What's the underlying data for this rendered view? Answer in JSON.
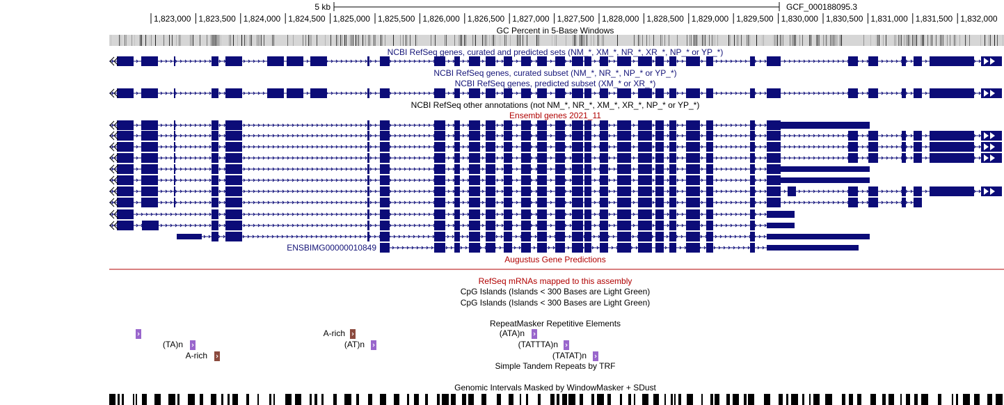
{
  "ruler": {
    "scale_label": "5 kb",
    "assembly_label": "GCF_000188095.3",
    "ticks": [
      "1,823,000",
      "1,823,500",
      "1,824,000",
      "1,824,500",
      "1,825,000",
      "1,825,500",
      "1,826,000",
      "1,826,500",
      "1,827,000",
      "1,827,500",
      "1,828,000",
      "1,828,500",
      "1,829,000",
      "1,829,500",
      "1,830,000",
      "1,830,500",
      "1,831,000",
      "1,831,500",
      "1,832,000"
    ]
  },
  "tracks": {
    "gc_percent": "GC Percent in 5-Base Windows",
    "refseq_all": "NCBI RefSeq genes, curated and predicted sets (NM_*, XM_*, NR_*, XR_*, NP_* or YP_*)",
    "refseq_curated": "NCBI RefSeq genes, curated subset (NM_*, NR_*, NP_* or YP_*)",
    "refseq_predicted": "NCBI RefSeq genes, predicted subset (XM_* or XR_*)",
    "refseq_other": "NCBI RefSeq other annotations (not NM_*, NR_*, XM_*, XR_*, NP_* or YP_*)",
    "ensembl": "Ensembl genes 2021_11",
    "ensembl_gene_id": "ENSBIMG00000010849",
    "augustus": "Augustus Gene Predictions",
    "refseq_mrna": "RefSeq mRNAs mapped to this assembly",
    "cpg1": "CpG Islands (Islands < 300 Bases are Light Green)",
    "cpg2": "CpG Islands (Islands < 300 Bases are Light Green)",
    "repeatmasker": "RepeatMasker Repetitive Elements",
    "trf": "Simple Tandem Repeats by TRF",
    "windowmasker": "Genomic Intervals Masked by WindowMasker + SDust"
  },
  "repeats": [
    {
      "label": "",
      "color": "#9966cc"
    },
    {
      "label": "(TA)n",
      "color": "#9966cc"
    },
    {
      "label": "A-rich",
      "color": "#8b4a3e"
    },
    {
      "label": "A-rich",
      "color": "#8b4a3e"
    },
    {
      "label": "(AT)n",
      "color": "#9966cc"
    },
    {
      "label": "(ATA)n",
      "color": "#9966cc"
    },
    {
      "label": "(TATTTA)n",
      "color": "#9966cc"
    },
    {
      "label": "(TATAT)n",
      "color": "#9966cc"
    }
  ],
  "colors": {
    "gene_navy": "#0c0c78",
    "track_red": "#b00000",
    "label_navy": "#141478",
    "repeat_purple": "#9966cc",
    "repeat_brown": "#8b4a3e"
  }
}
